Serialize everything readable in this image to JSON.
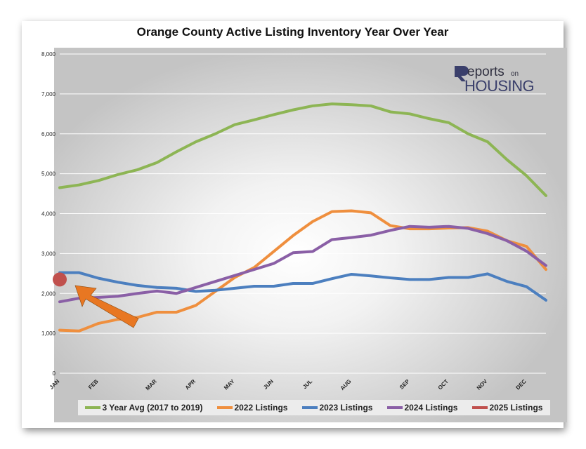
{
  "chart_data": {
    "type": "line",
    "title": "Orange County Active Listing Inventory Year Over Year",
    "xlabel": "",
    "ylabel": "",
    "ylim": [
      0,
      8000
    ],
    "yticks": [
      "0",
      "1,000",
      "2,000",
      "3,000",
      "4,000",
      "5,000",
      "6,000",
      "7,000",
      "8,000"
    ],
    "month_labels": [
      "JAN",
      "FEB",
      "MAR",
      "APR",
      "MAY",
      "JUN",
      "JUL",
      "AUG",
      "SEP",
      "OCT",
      "NOV",
      "DEC"
    ],
    "month_weeks": [
      0,
      4,
      10,
      14,
      18,
      22,
      26,
      30,
      36,
      40,
      44,
      48
    ],
    "x_weeks": [
      0,
      2,
      4,
      6,
      8,
      10,
      12,
      14,
      16,
      18,
      20,
      22,
      24,
      26,
      28,
      30,
      32,
      34,
      36,
      38,
      40,
      42,
      44,
      46,
      48,
      50
    ],
    "grid": true,
    "legend_position": "bottom",
    "series": [
      {
        "name": "3 Year Avg (2017 to 2019)",
        "color": "#8db554",
        "values": [
          4650,
          4720,
          4830,
          4980,
          5100,
          5280,
          5550,
          5800,
          6000,
          6230,
          6350,
          6480,
          6600,
          6700,
          6750,
          6730,
          6700,
          6550,
          6500,
          6380,
          6280,
          6000,
          5800,
          5350,
          4950,
          4450
        ]
      },
      {
        "name": "2022 Listings",
        "color": "#ef8f3e",
        "values": [
          1080,
          1060,
          1250,
          1350,
          1400,
          1530,
          1530,
          1700,
          2050,
          2400,
          2650,
          3050,
          3450,
          3800,
          4050,
          4070,
          4020,
          3700,
          3620,
          3620,
          3640,
          3650,
          3560,
          3320,
          3180,
          2600
        ]
      },
      {
        "name": "2023 Listings",
        "color": "#4c7fbf",
        "values": [
          2520,
          2520,
          2380,
          2280,
          2200,
          2150,
          2130,
          2050,
          2080,
          2130,
          2180,
          2180,
          2250,
          2250,
          2370,
          2480,
          2440,
          2390,
          2350,
          2350,
          2400,
          2400,
          2490,
          2300,
          2170,
          1830
        ]
      },
      {
        "name": "2024 Listings",
        "color": "#8a5fa6",
        "values": [
          1790,
          1880,
          1900,
          1930,
          2000,
          2060,
          2000,
          2150,
          2300,
          2450,
          2600,
          2750,
          3020,
          3050,
          3350,
          3400,
          3460,
          3580,
          3680,
          3660,
          3680,
          3630,
          3500,
          3320,
          3060,
          2700
        ]
      },
      {
        "name": "2025 Listings",
        "color": "#c0504d",
        "values": [
          2350
        ]
      }
    ]
  }
}
